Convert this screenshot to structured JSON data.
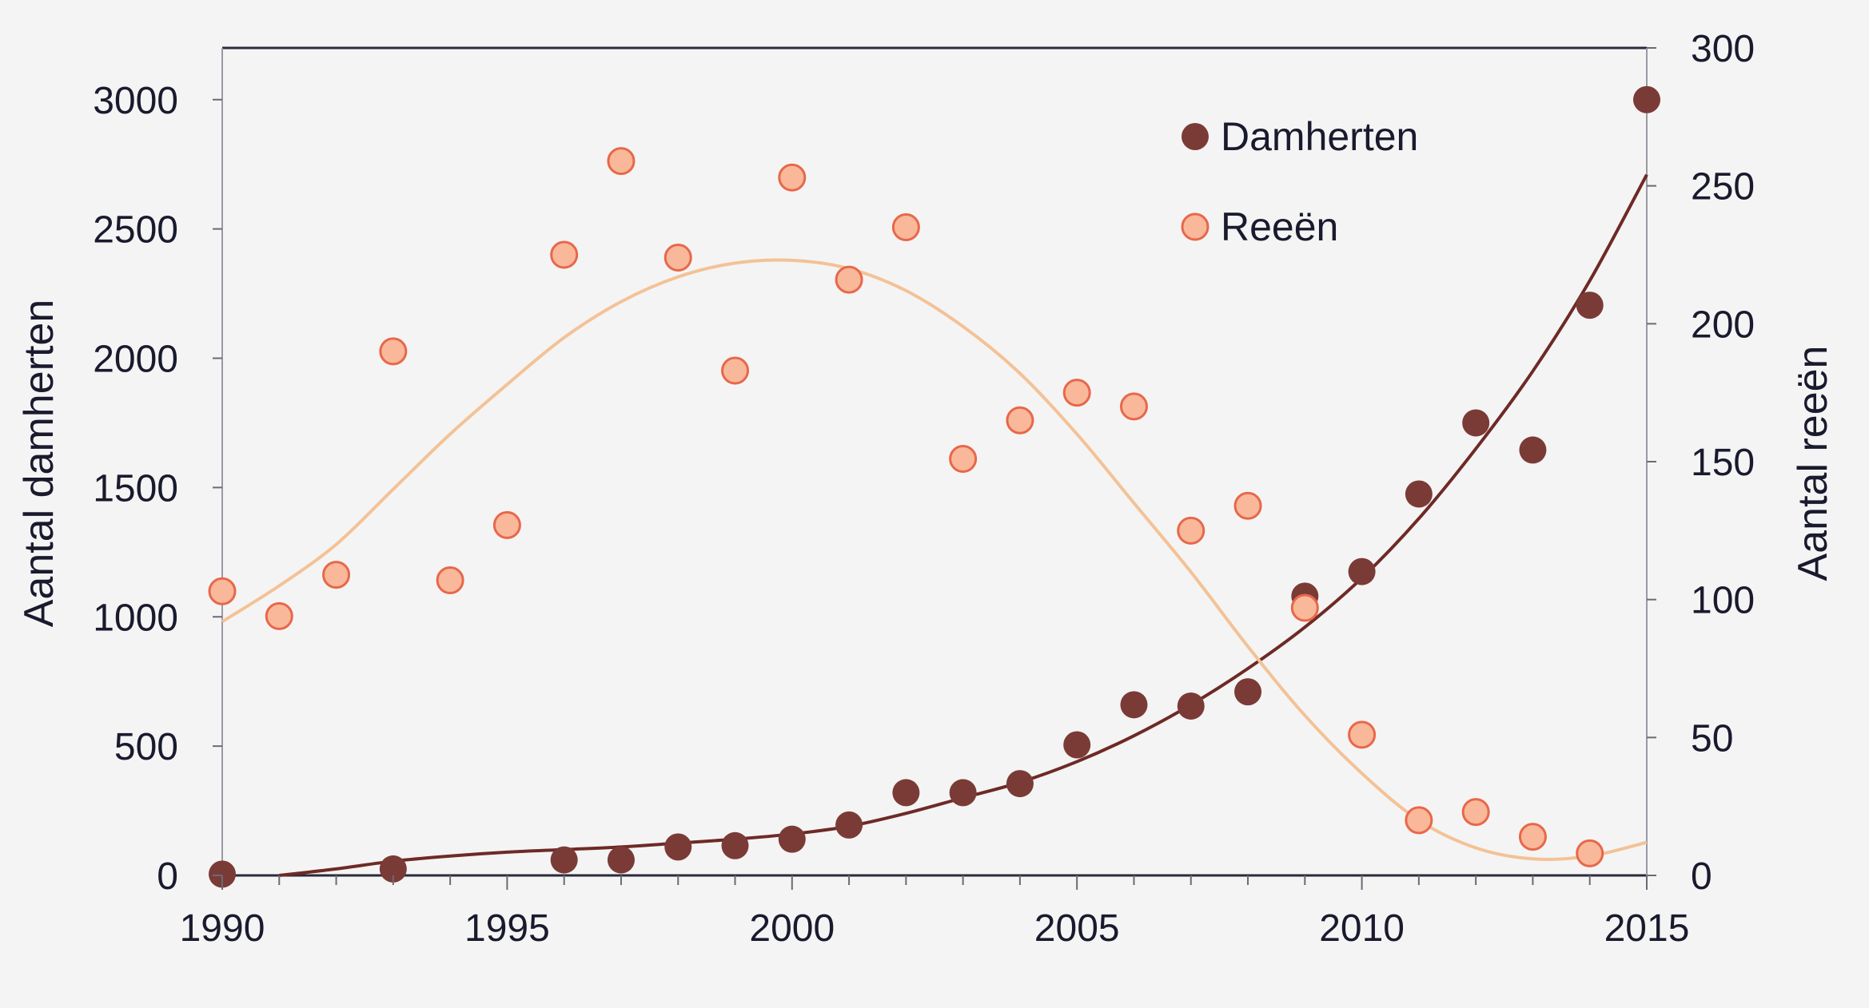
{
  "chart_data": {
    "type": "scatter",
    "x_range": [
      1990,
      2015
    ],
    "x_ticks": [
      1990,
      1995,
      2000,
      2005,
      2010,
      2015
    ],
    "left_axis": {
      "label": "Aantal damherten",
      "range": [
        0,
        3200
      ],
      "ticks": [
        0,
        500,
        1000,
        1500,
        2000,
        2500,
        3000
      ]
    },
    "right_axis": {
      "label": "Aantal reeën",
      "range": [
        0,
        300
      ],
      "ticks": [
        0,
        50,
        100,
        150,
        200,
        250,
        300
      ]
    },
    "legend": {
      "position": "top-right"
    },
    "series": [
      {
        "name": "Damherten",
        "axis": "left",
        "color": "#7a3b36",
        "trend_color": "#6e2a26",
        "points": [
          [
            1990,
            5
          ],
          [
            1993,
            25
          ],
          [
            1996,
            60
          ],
          [
            1997,
            60
          ],
          [
            1998,
            110
          ],
          [
            1999,
            115
          ],
          [
            2000,
            140
          ],
          [
            2001,
            195
          ],
          [
            2002,
            320
          ],
          [
            2003,
            320
          ],
          [
            2004,
            355
          ],
          [
            2005,
            505
          ],
          [
            2006,
            660
          ],
          [
            2007,
            655
          ],
          [
            2008,
            710
          ],
          [
            2009,
            1080
          ],
          [
            2010,
            1175
          ],
          [
            2011,
            1475
          ],
          [
            2012,
            1750
          ],
          [
            2013,
            1645
          ],
          [
            2014,
            2205
          ],
          [
            2015,
            3000
          ]
        ],
        "trend": [
          [
            1991,
            0
          ],
          [
            1992,
            25
          ],
          [
            1993,
            55
          ],
          [
            1994,
            75
          ],
          [
            1995,
            90
          ],
          [
            1996,
            100
          ],
          [
            1997,
            110
          ],
          [
            1998,
            125
          ],
          [
            1999,
            140
          ],
          [
            2000,
            160
          ],
          [
            2001,
            190
          ],
          [
            2002,
            240
          ],
          [
            2003,
            300
          ],
          [
            2004,
            360
          ],
          [
            2005,
            440
          ],
          [
            2006,
            540
          ],
          [
            2007,
            660
          ],
          [
            2008,
            800
          ],
          [
            2009,
            960
          ],
          [
            2010,
            1150
          ],
          [
            2011,
            1380
          ],
          [
            2012,
            1650
          ],
          [
            2013,
            1950
          ],
          [
            2014,
            2300
          ],
          [
            2015,
            2710
          ]
        ]
      },
      {
        "name": "Reeën",
        "axis": "right",
        "color": "#f9b89a",
        "stroke": "#e8674a",
        "trend_color": "#f3c296",
        "points": [
          [
            1990,
            103
          ],
          [
            1991,
            94
          ],
          [
            1992,
            109
          ],
          [
            1993,
            190
          ],
          [
            1994,
            107
          ],
          [
            1995,
            127
          ],
          [
            1996,
            225
          ],
          [
            1997,
            259
          ],
          [
            1998,
            224
          ],
          [
            1999,
            183
          ],
          [
            2000,
            253
          ],
          [
            2001,
            216
          ],
          [
            2002,
            235
          ],
          [
            2003,
            151
          ],
          [
            2004,
            165
          ],
          [
            2005,
            175
          ],
          [
            2006,
            170
          ],
          [
            2007,
            125
          ],
          [
            2008,
            134
          ],
          [
            2009,
            97
          ],
          [
            2010,
            51
          ],
          [
            2011,
            20
          ],
          [
            2012,
            23
          ],
          [
            2013,
            14
          ],
          [
            2014,
            8
          ]
        ],
        "trend": [
          [
            1990,
            92
          ],
          [
            1991,
            105
          ],
          [
            1992,
            120
          ],
          [
            1993,
            140
          ],
          [
            1994,
            160
          ],
          [
            1995,
            178
          ],
          [
            1996,
            195
          ],
          [
            1997,
            208
          ],
          [
            1998,
            217
          ],
          [
            1999,
            222
          ],
          [
            2000,
            223
          ],
          [
            2001,
            220
          ],
          [
            2002,
            212
          ],
          [
            2003,
            199
          ],
          [
            2004,
            182
          ],
          [
            2005,
            160
          ],
          [
            2006,
            135
          ],
          [
            2007,
            110
          ],
          [
            2008,
            83
          ],
          [
            2009,
            58
          ],
          [
            2010,
            37
          ],
          [
            2011,
            20
          ],
          [
            2012,
            10
          ],
          [
            2013,
            6
          ],
          [
            2014,
            7
          ],
          [
            2015,
            12
          ]
        ]
      }
    ]
  }
}
